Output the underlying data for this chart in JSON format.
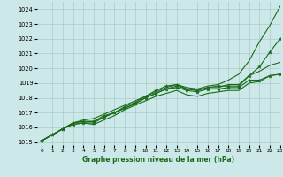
{
  "title": "Graphe pression niveau de la mer (hPa)",
  "bg_color": "#cce8e8",
  "grid_color": "#aacccc",
  "line_color": "#1a6b1a",
  "xlim": [
    -0.5,
    23
  ],
  "ylim": [
    1014.8,
    1024.5
  ],
  "xticks": [
    0,
    1,
    2,
    3,
    4,
    5,
    6,
    7,
    8,
    9,
    10,
    11,
    12,
    13,
    14,
    15,
    16,
    17,
    18,
    19,
    20,
    21,
    22,
    23
  ],
  "yticks": [
    1015,
    1016,
    1017,
    1018,
    1019,
    1020,
    1021,
    1022,
    1023,
    1024
  ],
  "series": [
    {
      "x": [
        0,
        1,
        2,
        3,
        4,
        5,
        6,
        7,
        8,
        9,
        10,
        11,
        12,
        13,
        14,
        15,
        16,
        17,
        18,
        19,
        20,
        21,
        22,
        23
      ],
      "y": [
        1015.1,
        1015.5,
        1015.9,
        1016.3,
        1016.5,
        1016.6,
        1016.9,
        1017.2,
        1017.5,
        1017.8,
        1018.1,
        1018.4,
        1018.7,
        1018.9,
        1018.7,
        1018.6,
        1018.8,
        1018.9,
        1019.2,
        1019.6,
        1020.5,
        1021.8,
        1022.9,
        1024.2
      ],
      "marker": false,
      "lw": 0.8
    },
    {
      "x": [
        0,
        1,
        2,
        3,
        4,
        5,
        6,
        7,
        8,
        9,
        10,
        11,
        12,
        13,
        14,
        15,
        16,
        17,
        18,
        19,
        20,
        21,
        22,
        23
      ],
      "y": [
        1015.1,
        1015.5,
        1015.9,
        1016.3,
        1016.4,
        1016.4,
        1016.8,
        1017.0,
        1017.4,
        1017.7,
        1018.1,
        1018.5,
        1018.8,
        1018.9,
        1018.6,
        1018.5,
        1018.7,
        1018.8,
        1018.8,
        1018.8,
        1019.5,
        1020.1,
        1021.1,
        1022.0
      ],
      "marker": true,
      "lw": 0.8
    },
    {
      "x": [
        0,
        1,
        2,
        3,
        4,
        5,
        6,
        7,
        8,
        9,
        10,
        11,
        12,
        13,
        14,
        15,
        16,
        17,
        18,
        19,
        20,
        21,
        22,
        23
      ],
      "y": [
        1015.1,
        1015.5,
        1015.9,
        1016.2,
        1016.3,
        1016.3,
        1016.7,
        1017.0,
        1017.3,
        1017.6,
        1018.0,
        1018.3,
        1018.6,
        1018.7,
        1018.5,
        1018.4,
        1018.6,
        1018.6,
        1018.7,
        1018.7,
        1019.2,
        1019.2,
        1019.5,
        1019.6
      ],
      "marker": true,
      "lw": 0.8
    },
    {
      "x": [
        0,
        1,
        2,
        3,
        4,
        5,
        6,
        7,
        8,
        9,
        10,
        11,
        12,
        13,
        14,
        15,
        16,
        17,
        18,
        19,
        20,
        21,
        22,
        23
      ],
      "y": [
        1015.1,
        1015.5,
        1015.9,
        1016.2,
        1016.3,
        1016.2,
        1016.5,
        1016.8,
        1017.2,
        1017.5,
        1017.8,
        1018.1,
        1018.3,
        1018.5,
        1018.2,
        1018.1,
        1018.3,
        1018.4,
        1018.5,
        1018.5,
        1019.0,
        1019.1,
        1019.5,
        1019.6
      ],
      "marker": false,
      "lw": 0.8
    },
    {
      "x": [
        0,
        1,
        2,
        3,
        4,
        5,
        6,
        7,
        8,
        9,
        10,
        11,
        12,
        13,
        14,
        15,
        16,
        17,
        18,
        19,
        20,
        21,
        22,
        23
      ],
      "y": [
        1015.1,
        1015.5,
        1015.9,
        1016.3,
        1016.4,
        1016.4,
        1016.7,
        1017.0,
        1017.3,
        1017.6,
        1018.0,
        1018.3,
        1018.6,
        1018.8,
        1018.6,
        1018.5,
        1018.7,
        1018.7,
        1018.9,
        1018.9,
        1019.5,
        1019.8,
        1020.2,
        1020.4
      ],
      "marker": false,
      "lw": 0.8
    }
  ]
}
